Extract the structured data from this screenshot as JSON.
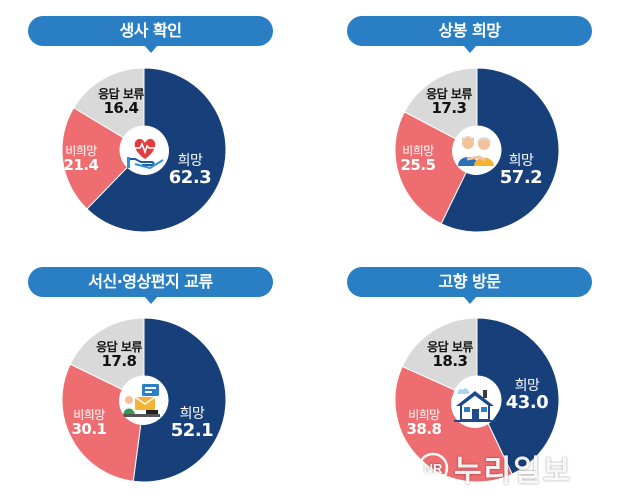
{
  "chart_data": [
    {
      "type": "pie",
      "title": "생사 확인",
      "categories": [
        "희망",
        "비희망",
        "응답 보류"
      ],
      "values": [
        62.3,
        21.4,
        16.4
      ],
      "colors": [
        "#173f7a",
        "#ee6d70",
        "#d9d9d9"
      ],
      "icon": "heart-in-hand-icon"
    },
    {
      "type": "pie",
      "title": "상봉 희망",
      "categories": [
        "희망",
        "비희망",
        "응답 보류"
      ],
      "values": [
        57.2,
        25.5,
        17.3
      ],
      "colors": [
        "#173f7a",
        "#ee6d70",
        "#d9d9d9"
      ],
      "icon": "reunion-couple-icon"
    },
    {
      "type": "pie",
      "title": "서신·영상편지 교류",
      "categories": [
        "희망",
        "비희망",
        "응답 보류"
      ],
      "values": [
        52.1,
        30.1,
        17.8
      ],
      "colors": [
        "#173f7a",
        "#ee6d70",
        "#d9d9d9"
      ],
      "icon": "video-letter-icon"
    },
    {
      "type": "pie",
      "title": "고향 방문",
      "categories": [
        "희망",
        "비희망",
        "응답 보류"
      ],
      "values": [
        43.0,
        38.8,
        18.3
      ],
      "colors": [
        "#173f7a",
        "#ee6d70",
        "#d9d9d9"
      ],
      "icon": "hometown-house-icon"
    }
  ],
  "watermark": {
    "badge": "NR",
    "text": "누리일보"
  }
}
